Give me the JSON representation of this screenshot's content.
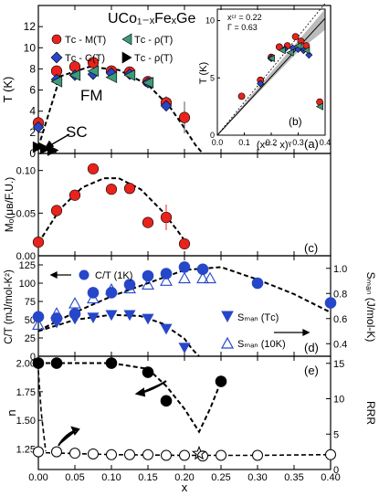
{
  "figure": {
    "x_label": "x",
    "x_ticks": [
      "0.00",
      "0.05",
      "0.10",
      "0.15",
      "0.20",
      "0.25",
      "0.30",
      "0.35",
      "0.40"
    ],
    "colors": {
      "red": "#e8231c",
      "blue": "#2747c9",
      "green": "#3e9a78",
      "black": "#000000"
    }
  },
  "chart_data": [
    {
      "panel": "a",
      "type": "scatter",
      "panel_label": "(a)",
      "title": "UCo₁₋ₓFeₓGe",
      "ylabel": "T (K)",
      "xlim": [
        0,
        0.4
      ],
      "ylim": [
        0,
        14
      ],
      "y_ticks": [
        "0",
        "2",
        "4",
        "6",
        "8",
        "10",
        "12"
      ],
      "annotations": [
        "FM",
        "SC"
      ],
      "legend": [
        "Tᴄ - M(T)",
        "Tᴄ - C(T)",
        "Tᴄ - ρ(T)",
        "Tᴄ - ρ(T)"
      ],
      "legend_sub": "c",
      "series": [
        {
          "name": "Tc - M(T)",
          "marker": "circle",
          "color": "#e8231c",
          "x": [
            0.0,
            0.025,
            0.05,
            0.075,
            0.1,
            0.125,
            0.15,
            0.175,
            0.2
          ],
          "y": [
            2.9,
            7.8,
            8.2,
            8.6,
            7.8,
            7.7,
            6.8,
            4.8,
            3.4
          ]
        },
        {
          "name": "Tc - C(T)",
          "marker": "diamond",
          "color": "#2747c9",
          "x": [
            0.0,
            0.025,
            0.05,
            0.075,
            0.1,
            0.125,
            0.15,
            0.175
          ],
          "y": [
            2.5,
            7.0,
            7.4,
            7.5,
            7.6,
            7.5,
            6.7,
            4.5
          ]
        },
        {
          "name": "Tc - rho(T) FM",
          "marker": "triangle-left",
          "color": "#3e9a78",
          "x": [
            0.025,
            0.05,
            0.075,
            0.1,
            0.125,
            0.15
          ],
          "y": [
            6.8,
            7.4,
            7.8,
            7.2,
            7.4,
            6.7
          ]
        },
        {
          "name": "Tc - rho(T) SC",
          "marker": "triangle-right",
          "color": "#000000",
          "x": [
            0.0,
            0.01,
            0.02
          ],
          "y": [
            0.6,
            0.45,
            0.3
          ]
        }
      ],
      "guide_fm": {
        "x": [
          0.0,
          0.03,
          0.07,
          0.11,
          0.15,
          0.18,
          0.2,
          0.215,
          0.225
        ],
        "y": [
          0.6,
          7.3,
          8.2,
          7.9,
          6.5,
          4.4,
          2.4,
          0.8,
          0.0
        ]
      },
      "guide_sc": {
        "x": [
          0.0,
          0.01,
          0.02,
          0.028
        ],
        "y": [
          0.75,
          0.5,
          0.25,
          0.0
        ]
      }
    },
    {
      "panel": "b",
      "type": "scatter",
      "panel_label": "(b)",
      "ylabel": "T (K)",
      "xlabel": "(xᶜʳ - x)ᵞ",
      "xlim": [
        0,
        0.4
      ],
      "ylim": [
        0,
        11
      ],
      "x_ticks": [
        "0.0",
        "0.1",
        "0.2",
        "0.3",
        "0.4"
      ],
      "y_ticks": [
        "0",
        "5",
        "10"
      ],
      "params": [
        "xᶜʳ = 0.22",
        "Γ = 0.63"
      ],
      "series": [
        {
          "name": "M(T)",
          "marker": "circle",
          "color": "#e8231c",
          "x": [
            0.09,
            0.16,
            0.2,
            0.23,
            0.26,
            0.29,
            0.31,
            0.33,
            0.38
          ],
          "y": [
            3.4,
            4.8,
            6.8,
            7.7,
            7.8,
            8.6,
            8.2,
            7.8,
            2.9
          ]
        },
        {
          "name": "C(T)",
          "marker": "diamond",
          "color": "#2747c9",
          "x": [
            0.16,
            0.2,
            0.25,
            0.28,
            0.3,
            0.32,
            0.34
          ],
          "y": [
            4.5,
            6.7,
            7.5,
            7.6,
            7.5,
            7.4,
            7.0
          ]
        },
        {
          "name": "rho(T)",
          "marker": "triangle-left",
          "color": "#3e9a78",
          "x": [
            0.2,
            0.24,
            0.27,
            0.3,
            0.33,
            0.38
          ],
          "y": [
            6.7,
            7.4,
            7.2,
            7.8,
            7.4,
            2.5
          ]
        }
      ]
    },
    {
      "panel": "c",
      "type": "scatter",
      "panel_label": "(c)",
      "ylabel": "Mₒ(μʙ/F.U.)",
      "xlim": [
        0,
        0.4
      ],
      "ylim": [
        0,
        0.12
      ],
      "y_ticks": [
        "0.00",
        "0.05",
        "0.10"
      ],
      "series": [
        {
          "name": "Mo",
          "marker": "circle",
          "color": "#e8231c",
          "x": [
            0.0,
            0.025,
            0.05,
            0.075,
            0.1,
            0.125,
            0.15,
            0.175,
            0.2
          ],
          "y": [
            0.016,
            0.053,
            0.071,
            0.102,
            0.078,
            0.079,
            0.039,
            0.045,
            0.014
          ]
        }
      ],
      "guide": {
        "x": [
          0.0,
          0.03,
          0.06,
          0.09,
          0.11,
          0.14,
          0.17,
          0.19,
          0.205
        ],
        "y": [
          0.015,
          0.055,
          0.08,
          0.091,
          0.091,
          0.078,
          0.052,
          0.03,
          0.012
        ]
      }
    },
    {
      "panel": "d",
      "type": "scatter",
      "panel_label": "(d)",
      "ylabel": "C/T (mJ/mol-K²)",
      "ylabel_right": "Sₘₐₙ (J/mol-K)",
      "xlim": [
        0,
        0.4
      ],
      "ylim": [
        0,
        137.5
      ],
      "ylim_right": [
        0.3,
        1.1
      ],
      "y_ticks": [
        "0",
        "25",
        "50",
        "75",
        "100",
        "125"
      ],
      "y_ticks_right": [
        "0.4",
        "0.6",
        "0.8",
        "1.0"
      ],
      "legend": [
        "C/T (1K)",
        "Sₘₐₙ (Tᴄ)",
        "Sₘₐₙ (10K)"
      ],
      "series": [
        {
          "name": "C/T (1K)",
          "marker": "circle",
          "color": "#2747c9",
          "axis": "left",
          "x": [
            0.0,
            0.025,
            0.05,
            0.075,
            0.1,
            0.125,
            0.15,
            0.175,
            0.2,
            0.225,
            0.3,
            0.4
          ],
          "y": [
            54,
            52,
            58,
            87,
            87,
            98,
            110,
            113,
            122,
            119,
            100,
            73
          ]
        },
        {
          "name": "Smag (Tc)",
          "marker": "triangle-down",
          "color": "#2747c9",
          "axis": "right",
          "x": [
            0.025,
            0.05,
            0.075,
            0.1,
            0.125,
            0.15,
            0.175,
            0.2
          ],
          "y": [
            0.57,
            0.6,
            0.61,
            0.63,
            0.63,
            0.6,
            0.52,
            0.37
          ]
        },
        {
          "name": "Smag (10K)",
          "marker": "triangle-up",
          "color": "#2747c9",
          "axis": "right",
          "x": [
            0.0,
            0.025,
            0.05,
            0.075,
            0.1,
            0.125,
            0.15,
            0.175,
            0.2,
            0.225,
            0.235
          ],
          "y": [
            0.55,
            0.64,
            0.72,
            0.76,
            0.83,
            0.84,
            0.87,
            0.9,
            0.92,
            0.92,
            0.92
          ]
        }
      ],
      "guide_ct": {
        "x": [
          0.0,
          0.05,
          0.1,
          0.15,
          0.2,
          0.25,
          0.3,
          0.35,
          0.4
        ],
        "y": [
          35,
          60,
          82,
          100,
          118,
          122,
          105,
          85,
          60
        ]
      },
      "guide_smag": {
        "x": [
          0.0,
          0.05,
          0.1,
          0.14,
          0.17,
          0.2,
          0.21,
          0.22
        ],
        "y": [
          0.5,
          0.59,
          0.63,
          0.62,
          0.56,
          0.44,
          0.36,
          0.3
        ]
      }
    },
    {
      "panel": "e",
      "type": "scatter",
      "panel_label": "(e)",
      "ylabel": "n",
      "ylabel_right": "RRR",
      "xlim": [
        0,
        0.4
      ],
      "ylim": [
        1.07,
        2.06
      ],
      "ylim_right": [
        0,
        16
      ],
      "y_ticks": [
        "1.25",
        "1.50",
        "1.75",
        "2.00"
      ],
      "y_ticks_right": [
        "0",
        "5",
        "10",
        "15"
      ],
      "series": [
        {
          "name": "n",
          "marker": "circle",
          "color": "#000000",
          "axis": "left",
          "x": [
            0.0,
            0.025,
            0.1,
            0.15,
            0.175,
            0.25
          ],
          "y": [
            2.0,
            2.0,
            2.0,
            1.92,
            1.67,
            1.84
          ]
        },
        {
          "name": "RRR",
          "marker": "circle-open",
          "color": "#000000",
          "axis": "right",
          "x": [
            0.0,
            0.025,
            0.05,
            0.075,
            0.1,
            0.125,
            0.15,
            0.175,
            0.2,
            0.225,
            0.25,
            0.3,
            0.4
          ],
          "y": [
            2.5,
            2.5,
            2.3,
            2.2,
            2.1,
            2.1,
            2.1,
            2.0,
            2.0,
            1.9,
            2.0,
            2.0,
            2.1
          ]
        },
        {
          "name": "open star",
          "marker": "star-open",
          "color": "#000000",
          "axis": "left",
          "x": [
            0.22
          ],
          "y": [
            1.21
          ]
        }
      ],
      "guide_n": {
        "x": [
          0.0,
          0.1,
          0.15,
          0.175,
          0.2,
          0.215,
          0.22,
          0.235,
          0.25
        ],
        "y": [
          2.0,
          2.0,
          1.95,
          1.8,
          1.6,
          1.45,
          1.4,
          1.6,
          1.84
        ]
      },
      "guide_rrr": {
        "x": [
          0.0,
          0.1,
          0.2,
          0.3,
          0.4
        ],
        "y": [
          2.4,
          2.1,
          2.0,
          2.0,
          2.1
        ]
      }
    }
  ]
}
